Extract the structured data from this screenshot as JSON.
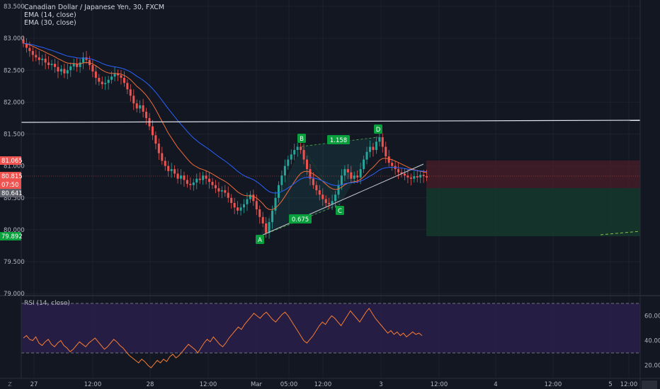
{
  "header": {
    "symbol_title": "Canadian Dollar / Japanese Yen, 30, FXCM",
    "indicator_1": "EMA (14, close)",
    "indicator_2": "EMA (30, close)"
  },
  "rsi_panel": {
    "label": "RSI (14, close)",
    "y_ticks": [
      "60.00",
      "40.00",
      "20.00"
    ],
    "upper_band": 70,
    "lower_band": 30,
    "series": [
      42,
      44,
      41,
      40,
      43,
      38,
      36,
      39,
      41,
      37,
      35,
      38,
      40,
      36,
      34,
      31,
      33,
      36,
      39,
      37,
      35,
      38,
      40,
      42,
      39,
      36,
      33,
      35,
      38,
      41,
      39,
      36,
      34,
      31,
      28,
      26,
      24,
      22,
      25,
      23,
      20,
      18,
      21,
      24,
      22,
      25,
      23,
      27,
      29,
      26,
      28,
      31,
      34,
      37,
      35,
      33,
      30,
      34,
      38,
      41,
      39,
      43,
      40,
      37,
      35,
      38,
      42,
      45,
      48,
      51,
      49,
      53,
      56,
      59,
      62,
      60,
      58,
      61,
      63,
      60,
      57,
      55,
      58,
      61,
      63,
      60,
      56,
      52,
      48,
      44,
      40,
      38,
      41,
      44,
      48,
      52,
      55,
      53,
      57,
      60,
      58,
      55,
      52,
      56,
      60,
      64,
      61,
      58,
      55,
      59,
      63,
      66,
      62,
      58,
      55,
      52,
      49,
      46,
      48,
      45,
      47,
      44,
      46,
      43,
      45,
      47,
      45,
      46,
      44
    ]
  },
  "price_axis": {
    "ticks": [
      "83.500",
      "83.000",
      "82.500",
      "82.000",
      "81.500",
      "81.000",
      "80.500",
      "80.000",
      "79.500",
      "79.000"
    ],
    "badges": [
      {
        "text": "81.065",
        "kind": "stop"
      },
      {
        "text": "80.815",
        "kind": "current"
      },
      {
        "text": "07:50",
        "kind": "timer"
      },
      {
        "text": "80.641",
        "kind": "entry"
      },
      {
        "text": "79.892",
        "kind": "target"
      }
    ]
  },
  "time_axis": {
    "ticks": [
      "27",
      "12:00",
      "28",
      "12:00",
      "Mar",
      "05:00",
      "12:00",
      "3",
      "12:00",
      "4",
      "12:00",
      "5",
      "12:00"
    ],
    "corner_left": "Z"
  },
  "pattern_labels": {
    "points": [
      "A",
      "B",
      "C",
      "D"
    ],
    "ratio_ab": "0.675",
    "ratio_bd": "1.158"
  },
  "chart_data": {
    "type": "candlestick",
    "title": "Canadian Dollar / Japanese Yen, 30, FXCM",
    "ylim": [
      79.0,
      83.5
    ],
    "resistance_level": 81.67,
    "current_price": 80.815,
    "position": {
      "entry": 80.641,
      "stop": 81.065,
      "target": 79.892
    },
    "pattern": [
      {
        "label": "A",
        "price": 79.88
      },
      {
        "label": "B",
        "price": 81.35
      },
      {
        "label": "C",
        "price": 80.4
      },
      {
        "label": "D",
        "price": 81.45
      }
    ],
    "colors": {
      "up": "#26a69a",
      "down": "#ef5350",
      "ema14": "#ef6c3a",
      "ema30": "#2962ff",
      "rsi": "#f57c32"
    },
    "close": [
      82.92,
      82.85,
      82.8,
      82.74,
      82.7,
      82.66,
      82.68,
      82.62,
      82.58,
      82.6,
      82.55,
      82.48,
      82.52,
      82.45,
      82.5,
      82.56,
      82.6,
      82.55,
      82.62,
      82.7,
      82.66,
      82.58,
      82.48,
      82.38,
      82.32,
      82.28,
      82.3,
      82.35,
      82.4,
      82.45,
      82.42,
      82.38,
      82.3,
      82.2,
      82.1,
      81.98,
      81.9,
      81.95,
      81.85,
      81.75,
      81.62,
      81.48,
      81.35,
      81.2,
      81.08,
      81.0,
      80.92,
      80.95,
      80.88,
      80.8,
      80.85,
      80.78,
      80.72,
      80.7,
      80.74,
      80.8,
      80.78,
      80.85,
      80.8,
      80.75,
      80.7,
      80.65,
      80.6,
      80.62,
      80.58,
      80.5,
      80.42,
      80.35,
      80.3,
      80.35,
      80.4,
      80.48,
      80.55,
      80.45,
      80.32,
      80.2,
      80.1,
      79.95,
      80.12,
      80.3,
      80.5,
      80.7,
      80.85,
      81.0,
      81.1,
      81.18,
      81.25,
      81.3,
      81.25,
      81.1,
      80.95,
      80.8,
      80.7,
      80.62,
      80.55,
      80.48,
      80.42,
      80.4,
      80.45,
      80.55,
      80.7,
      80.85,
      80.95,
      80.9,
      80.8,
      80.85,
      80.82,
      80.95,
      81.1,
      81.22,
      81.3,
      81.25,
      81.38,
      81.45,
      81.3,
      81.15,
      81.05,
      81.0,
      80.95,
      80.9,
      80.88,
      80.85,
      80.82,
      80.8,
      80.84,
      80.82,
      80.86,
      80.84,
      80.82
    ]
  }
}
